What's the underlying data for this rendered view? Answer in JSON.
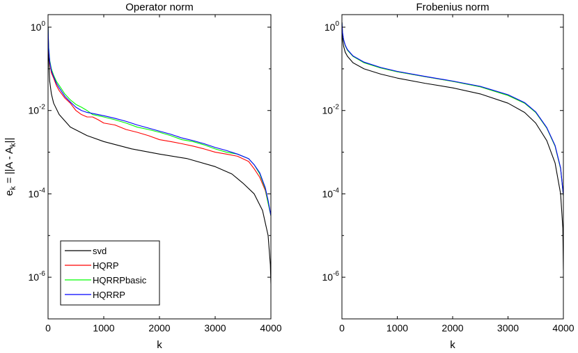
{
  "chart_data": [
    {
      "type": "line",
      "title": "Operator norm",
      "xlabel": "k",
      "ylabel": "e_k = ||A - A_k||",
      "yscale": "log",
      "xlim": [
        0,
        4000
      ],
      "ylim": [
        1e-07,
        2
      ],
      "x_ticks": [
        "0",
        "1000",
        "2000",
        "3000",
        "4000"
      ],
      "y_ticks": [
        {
          "base": "10",
          "exp": "0"
        },
        {
          "base": "10",
          "exp": "-2"
        },
        {
          "base": "10",
          "exp": "-4"
        },
        {
          "base": "10",
          "exp": "-6"
        }
      ],
      "legend": {
        "placement": "bottom-left",
        "entries": [
          "svd",
          "HQRP",
          "HQRRPbasic",
          "HQRRP"
        ]
      },
      "series": [
        {
          "name": "svd",
          "color": "#000000",
          "x": [
            1,
            10,
            30,
            60,
            100,
            200,
            400,
            700,
            1000,
            1500,
            2000,
            2500,
            3000,
            3300,
            3500,
            3700,
            3850,
            3950,
            3990,
            4000
          ],
          "y": [
            1.0,
            0.2,
            0.05,
            0.025,
            0.015,
            0.008,
            0.004,
            0.0025,
            0.0018,
            0.0012,
            0.0009,
            0.0007,
            0.00045,
            0.0003,
            0.00018,
            0.0001,
            4e-05,
            1e-05,
            2e-06,
            7e-07
          ]
        },
        {
          "name": "HQRP",
          "color": "#ff0000",
          "x": [
            1,
            10,
            30,
            60,
            100,
            150,
            200,
            300,
            400,
            500,
            600,
            700,
            800,
            900,
            1000,
            1200,
            1400,
            1600,
            1800,
            2000,
            2200,
            2400,
            2600,
            2800,
            3000,
            3200,
            3400,
            3600,
            3700,
            3800,
            3900,
            3950,
            4000
          ],
          "y": [
            1.0,
            0.3,
            0.14,
            0.08,
            0.06,
            0.04,
            0.03,
            0.02,
            0.015,
            0.01,
            0.008,
            0.007,
            0.007,
            0.006,
            0.005,
            0.0045,
            0.0035,
            0.003,
            0.0025,
            0.002,
            0.0018,
            0.0016,
            0.0014,
            0.0012,
            0.001,
            0.0009,
            0.0008,
            0.0006,
            0.0004,
            0.00025,
            0.00012,
            6e-05,
            3e-05
          ]
        },
        {
          "name": "HQRRPbasic",
          "color": "#00ff00",
          "x": [
            1,
            10,
            30,
            60,
            100,
            150,
            200,
            300,
            400,
            500,
            600,
            700,
            800,
            900,
            1000,
            1200,
            1400,
            1600,
            1800,
            2000,
            2200,
            2400,
            2600,
            2800,
            3000,
            3200,
            3400,
            3600,
            3700,
            3800,
            3900,
            3950,
            4000
          ],
          "y": [
            1.0,
            0.35,
            0.16,
            0.1,
            0.07,
            0.05,
            0.04,
            0.025,
            0.018,
            0.014,
            0.012,
            0.01,
            0.008,
            0.0075,
            0.007,
            0.006,
            0.005,
            0.004,
            0.0035,
            0.003,
            0.0025,
            0.002,
            0.0018,
            0.0015,
            0.0012,
            0.001,
            0.0009,
            0.0007,
            0.0005,
            0.0003,
            0.00013,
            6e-05,
            3e-05
          ]
        },
        {
          "name": "HQRRP",
          "color": "#0000ff",
          "x": [
            1,
            10,
            30,
            60,
            100,
            150,
            200,
            300,
            400,
            500,
            600,
            700,
            800,
            900,
            1000,
            1200,
            1400,
            1600,
            1800,
            2000,
            2200,
            2400,
            2600,
            2800,
            3000,
            3200,
            3400,
            3600,
            3700,
            3800,
            3900,
            3950,
            4000
          ],
          "y": [
            1.0,
            0.32,
            0.15,
            0.09,
            0.065,
            0.045,
            0.035,
            0.022,
            0.016,
            0.012,
            0.01,
            0.009,
            0.0085,
            0.008,
            0.0075,
            0.0065,
            0.0055,
            0.0045,
            0.0038,
            0.0032,
            0.0027,
            0.0022,
            0.0019,
            0.0016,
            0.0013,
            0.0011,
            0.0009,
            0.0007,
            0.0005,
            0.00032,
            0.00014,
            7e-05,
            3e-05
          ]
        }
      ]
    },
    {
      "type": "line",
      "title": "Frobenius norm",
      "xlabel": "k",
      "yscale": "log",
      "xlim": [
        0,
        4000
      ],
      "ylim": [
        1e-07,
        2
      ],
      "x_ticks": [
        "0",
        "1000",
        "2000",
        "3000",
        "4000"
      ],
      "y_ticks": [
        {
          "base": "10",
          "exp": "0"
        },
        {
          "base": "10",
          "exp": "-2"
        },
        {
          "base": "10",
          "exp": "-4"
        },
        {
          "base": "10",
          "exp": "-6"
        }
      ],
      "series": [
        {
          "name": "svd",
          "color": "#000000",
          "x": [
            1,
            10,
            30,
            60,
            100,
            200,
            400,
            700,
            1000,
            1500,
            2000,
            2500,
            3000,
            3300,
            3500,
            3700,
            3850,
            3950,
            3990,
            4000
          ],
          "y": [
            1.0,
            0.55,
            0.35,
            0.25,
            0.2,
            0.14,
            0.1,
            0.075,
            0.06,
            0.045,
            0.035,
            0.025,
            0.015,
            0.009,
            0.005,
            0.0019,
            0.00055,
            0.0001,
            1.5e-05,
            1.5e-06
          ]
        },
        {
          "name": "HQRP",
          "color": "#ff0000",
          "x": [
            1,
            10,
            30,
            60,
            100,
            200,
            400,
            700,
            1000,
            1500,
            2000,
            2500,
            3000,
            3300,
            3500,
            3700,
            3850,
            3950,
            4000
          ],
          "y": [
            1.3,
            0.75,
            0.5,
            0.36,
            0.28,
            0.2,
            0.14,
            0.105,
            0.085,
            0.065,
            0.05,
            0.037,
            0.023,
            0.015,
            0.009,
            0.0038,
            0.0014,
            0.0004,
            9e-05
          ]
        },
        {
          "name": "HQRRPbasic",
          "color": "#00ff00",
          "x": [
            1,
            10,
            30,
            60,
            100,
            200,
            400,
            700,
            1000,
            1500,
            2000,
            2500,
            3000,
            3300,
            3500,
            3700,
            3850,
            3950,
            4000
          ],
          "y": [
            1.3,
            0.75,
            0.5,
            0.36,
            0.28,
            0.2,
            0.14,
            0.105,
            0.085,
            0.065,
            0.05,
            0.037,
            0.023,
            0.015,
            0.009,
            0.0038,
            0.0014,
            0.0004,
            9e-05
          ]
        },
        {
          "name": "HQRRP",
          "color": "#0000ff",
          "x": [
            1,
            10,
            30,
            60,
            100,
            200,
            400,
            700,
            1000,
            1500,
            2000,
            2500,
            3000,
            3300,
            3500,
            3700,
            3850,
            3950,
            4000
          ],
          "y": [
            1.3,
            0.76,
            0.51,
            0.37,
            0.29,
            0.205,
            0.145,
            0.108,
            0.087,
            0.066,
            0.051,
            0.038,
            0.024,
            0.0155,
            0.0093,
            0.0039,
            0.00145,
            0.00042,
            9.2e-05
          ]
        }
      ]
    }
  ]
}
